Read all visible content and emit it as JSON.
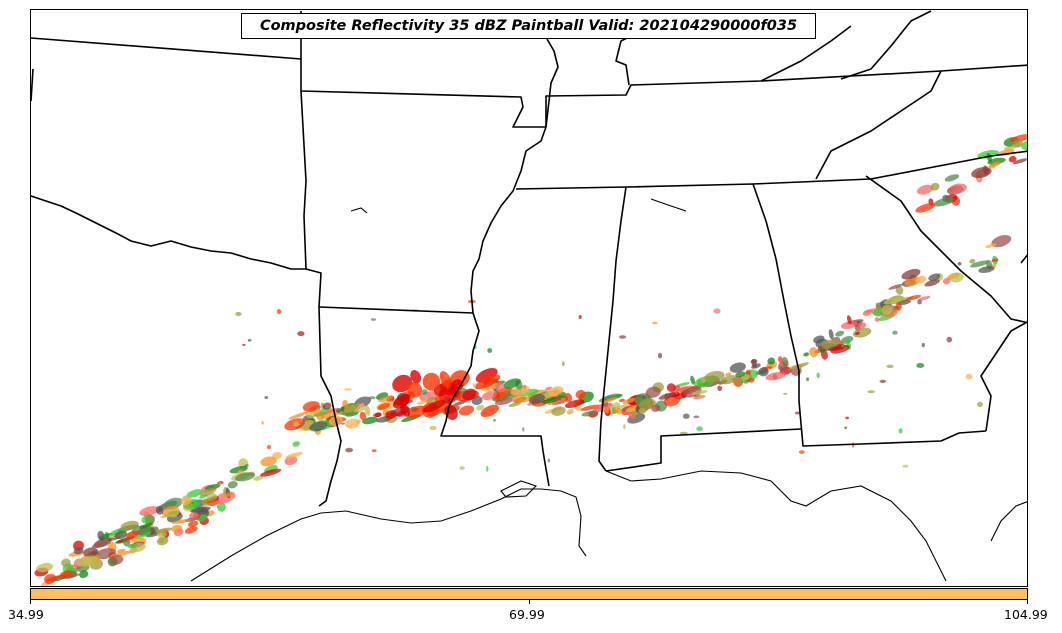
{
  "title": "Composite Reflectivity 35 dBZ Paintball Valid: 202104290000f035",
  "colorbar": {
    "color": "#ffbf5f",
    "tick_labels": [
      "34.99",
      "69.99",
      "104.99"
    ]
  },
  "map": {
    "projection": "regional",
    "features": [
      "state-borders",
      "coastline"
    ],
    "region": "Southeast United States",
    "paintball_colors": [
      "#ff3300",
      "#dd0000",
      "#ff8c1a",
      "#ffad4d",
      "#8b3a3a",
      "#a05050",
      "#555555",
      "#33cc33",
      "#118811",
      "#4d8c4d",
      "#9b9b3a",
      "#bdbd50",
      "#ff6666"
    ]
  }
}
